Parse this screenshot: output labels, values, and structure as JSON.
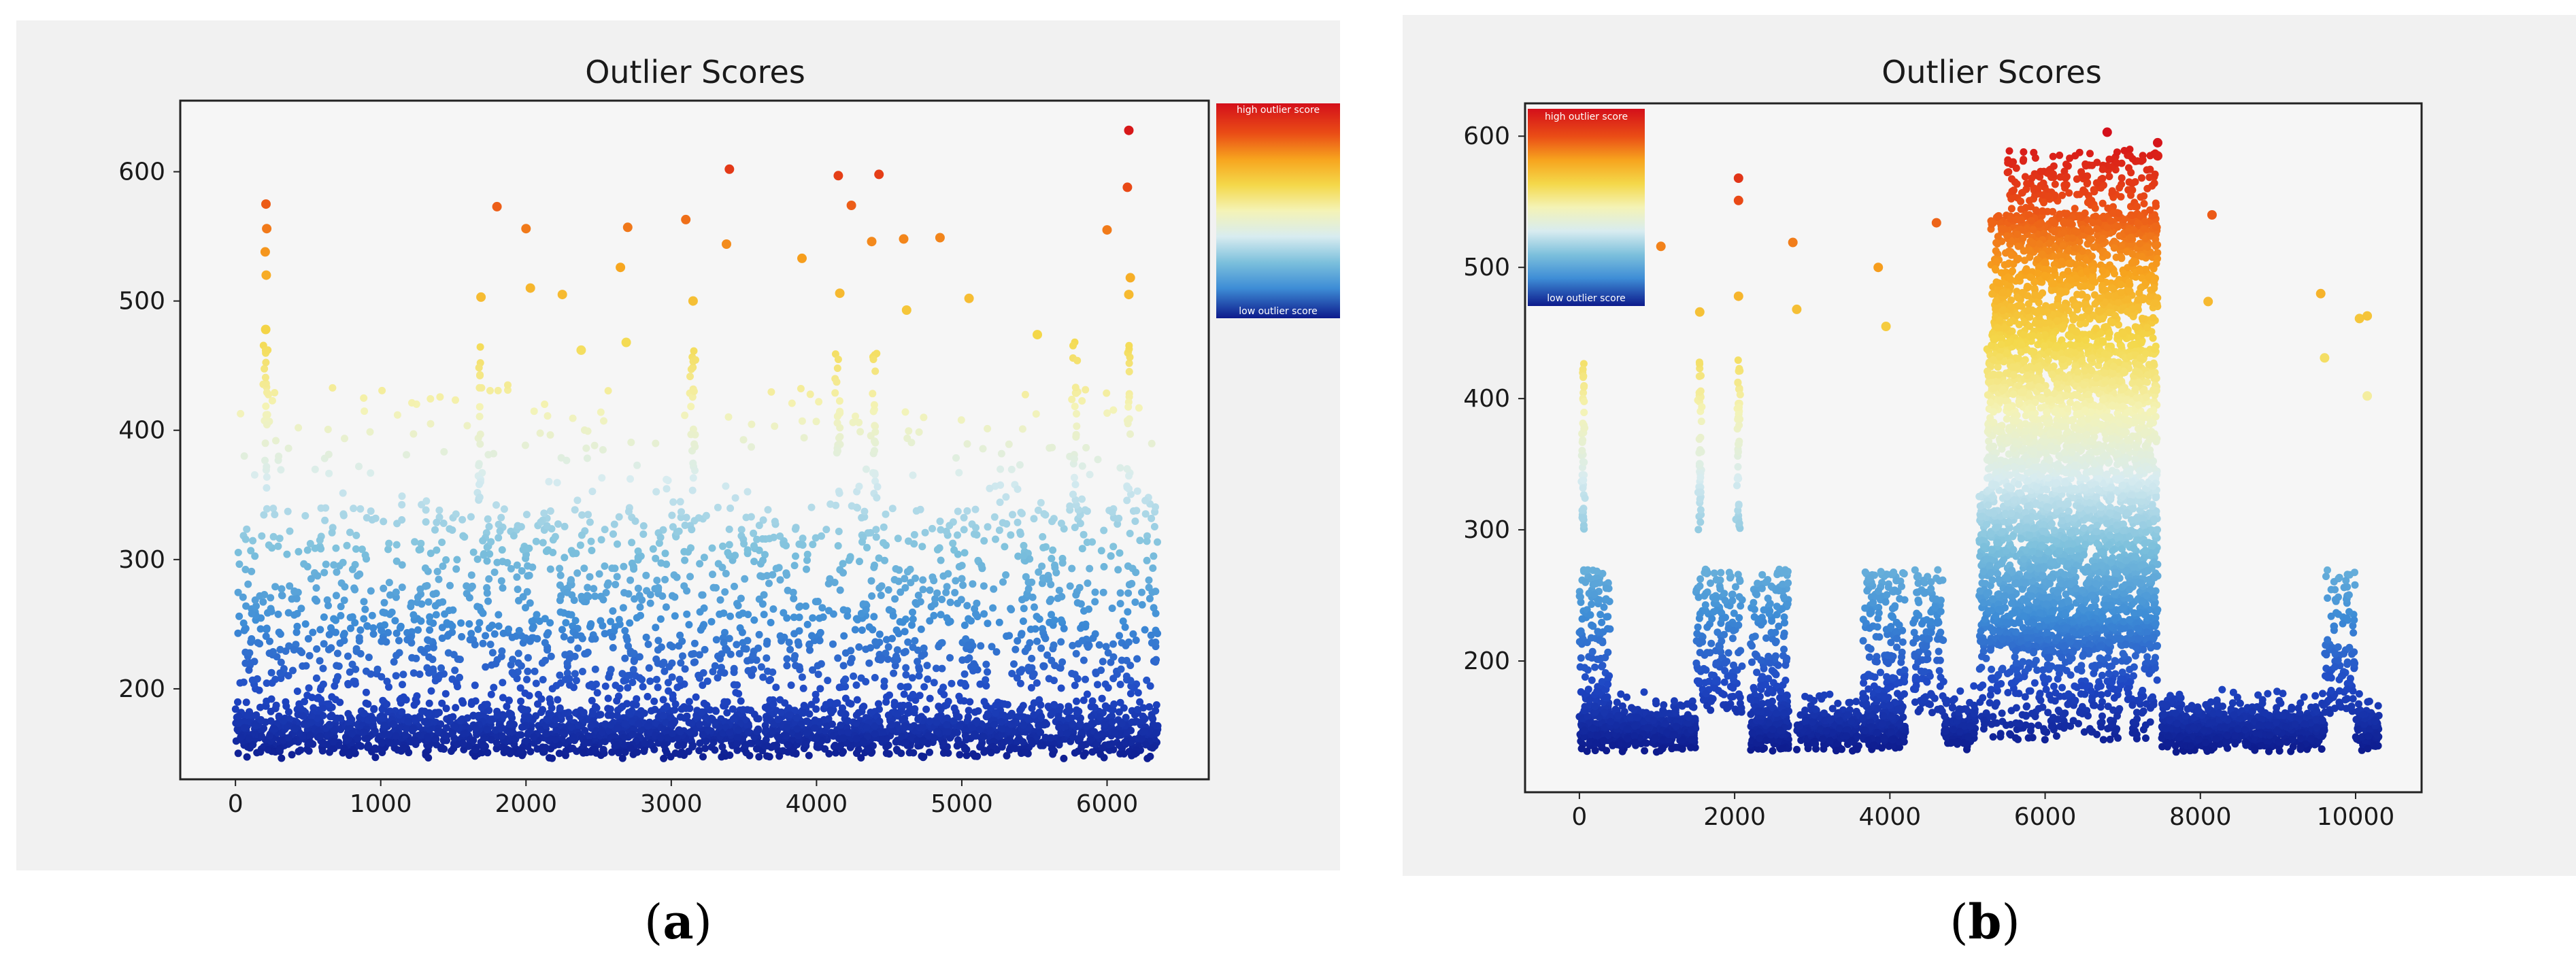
{
  "colors": {
    "panel_bg": "#f1f1f1",
    "frame": "#222222",
    "cmap": [
      "#0d1a8c",
      "#1f47c4",
      "#3e8dd6",
      "#7cc0dc",
      "#d8ecf0",
      "#f4f3b6",
      "#f4d84a",
      "#f7a41e",
      "#ea4d16",
      "#d40f1a"
    ]
  },
  "panels": [
    {
      "caption_open": "(",
      "caption_letter": "a",
      "caption_close": ")",
      "chart_data": {
        "type": "scatter",
        "title": "Outlier Scores",
        "xlabel": "",
        "ylabel": "",
        "xlim": [
          -380,
          6700
        ],
        "ylim": [
          130,
          655
        ],
        "xticks": [
          0,
          1000,
          2000,
          3000,
          4000,
          5000,
          6000
        ],
        "xtick_labels": [
          "0",
          "1000",
          "2000",
          "3000",
          "4000",
          "5000",
          "6000"
        ],
        "yticks": [
          200,
          300,
          400,
          500,
          600
        ],
        "ytick_labels": [
          "200",
          "300",
          "400",
          "500",
          "600"
        ],
        "colorbar": {
          "high_label": "high outlier score",
          "low_label": "low outlier score",
          "placement": "right, outside axes"
        },
        "color_range": [
          140,
          640
        ],
        "outliers": [
          {
            "x": 210,
            "y": 575
          },
          {
            "x": 215,
            "y": 556
          },
          {
            "x": 205,
            "y": 538
          },
          {
            "x": 212,
            "y": 520
          },
          {
            "x": 208,
            "y": 478
          },
          {
            "x": 1800,
            "y": 573
          },
          {
            "x": 2000,
            "y": 556
          },
          {
            "x": 2700,
            "y": 557
          },
          {
            "x": 3100,
            "y": 563
          },
          {
            "x": 3400,
            "y": 602
          },
          {
            "x": 3380,
            "y": 544
          },
          {
            "x": 3900,
            "y": 533
          },
          {
            "x": 4150,
            "y": 597
          },
          {
            "x": 4430,
            "y": 598
          },
          {
            "x": 4240,
            "y": 574
          },
          {
            "x": 4380,
            "y": 546
          },
          {
            "x": 4600,
            "y": 548
          },
          {
            "x": 4850,
            "y": 549
          },
          {
            "x": 6000,
            "y": 555
          },
          {
            "x": 6150,
            "y": 632
          },
          {
            "x": 6140,
            "y": 588
          },
          {
            "x": 6160,
            "y": 518
          },
          {
            "x": 6150,
            "y": 505
          },
          {
            "x": 2030,
            "y": 510
          },
          {
            "x": 2250,
            "y": 505
          },
          {
            "x": 2650,
            "y": 526
          },
          {
            "x": 3150,
            "y": 500
          },
          {
            "x": 4160,
            "y": 506
          },
          {
            "x": 4620,
            "y": 493
          },
          {
            "x": 5050,
            "y": 502
          },
          {
            "x": 1690,
            "y": 503
          },
          {
            "x": 2380,
            "y": 462
          },
          {
            "x": 5520,
            "y": 474
          },
          {
            "x": 2690,
            "y": 468
          }
        ]
      }
    },
    {
      "caption_open": "(",
      "caption_letter": "b",
      "caption_close": ")",
      "chart_data": {
        "type": "scatter",
        "title": "Outlier Scores",
        "xlabel": "",
        "ylabel": "",
        "xlim": [
          -700,
          10850
        ],
        "ylim": [
          100,
          625
        ],
        "xticks": [
          0,
          2000,
          4000,
          6000,
          8000,
          10000
        ],
        "xtick_labels": [
          "0",
          "2000",
          "4000",
          "6000",
          "8000",
          "10000"
        ],
        "yticks": [
          200,
          300,
          400,
          500,
          600
        ],
        "ytick_labels": [
          "200",
          "300",
          "400",
          "500",
          "600"
        ],
        "colorbar": {
          "high_label": "high outlier score",
          "low_label": "low outlier score",
          "placement": "upper-left, inside axes"
        },
        "color_range": [
          130,
          600
        ],
        "outliers": [
          {
            "x": 2050,
            "y": 568
          },
          {
            "x": 2050,
            "y": 551
          },
          {
            "x": 1050,
            "y": 516
          },
          {
            "x": 2750,
            "y": 519
          },
          {
            "x": 2050,
            "y": 478
          },
          {
            "x": 3850,
            "y": 500
          },
          {
            "x": 4600,
            "y": 534
          },
          {
            "x": 8150,
            "y": 540
          },
          {
            "x": 8100,
            "y": 474
          },
          {
            "x": 9550,
            "y": 480
          },
          {
            "x": 10050,
            "y": 461
          },
          {
            "x": 10150,
            "y": 463
          },
          {
            "x": 6800,
            "y": 603
          },
          {
            "x": 7450,
            "y": 595
          },
          {
            "x": 7450,
            "y": 585
          },
          {
            "x": 1550,
            "y": 466
          },
          {
            "x": 2800,
            "y": 468
          },
          {
            "x": 3950,
            "y": 455
          },
          {
            "x": 9600,
            "y": 431
          },
          {
            "x": 10150,
            "y": 402
          }
        ]
      }
    }
  ]
}
